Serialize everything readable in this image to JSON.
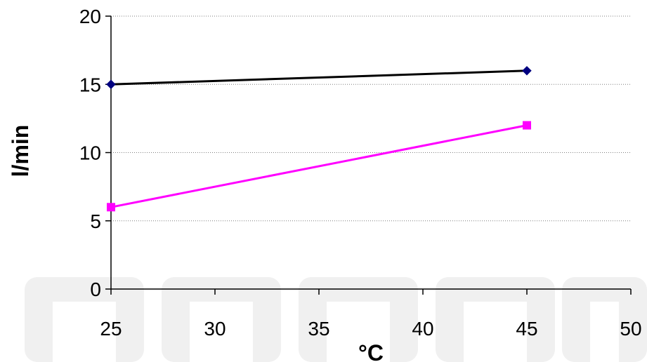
{
  "chart_data": {
    "type": "line",
    "xlabel": "°C",
    "ylabel": "l/min",
    "xlim": [
      25,
      50
    ],
    "ylim": [
      0,
      20
    ],
    "xticks": [
      25,
      30,
      35,
      40,
      45,
      50
    ],
    "yticks": [
      0,
      5,
      10,
      15,
      20
    ],
    "grid": "horizontal dotted",
    "legend": "none",
    "series": [
      {
        "color": "#000000",
        "marker": "diamond",
        "marker_color": "#000080",
        "points": [
          {
            "x": 25,
            "y": 15
          },
          {
            "x": 45,
            "y": 16
          }
        ]
      },
      {
        "color": "#ff00ff",
        "marker": "square",
        "marker_color": "#ff00ff",
        "points": [
          {
            "x": 25,
            "y": 6
          },
          {
            "x": 45,
            "y": 12
          }
        ]
      }
    ]
  },
  "watermark": {
    "text": "MARCO",
    "color": "#f0f0f0"
  }
}
